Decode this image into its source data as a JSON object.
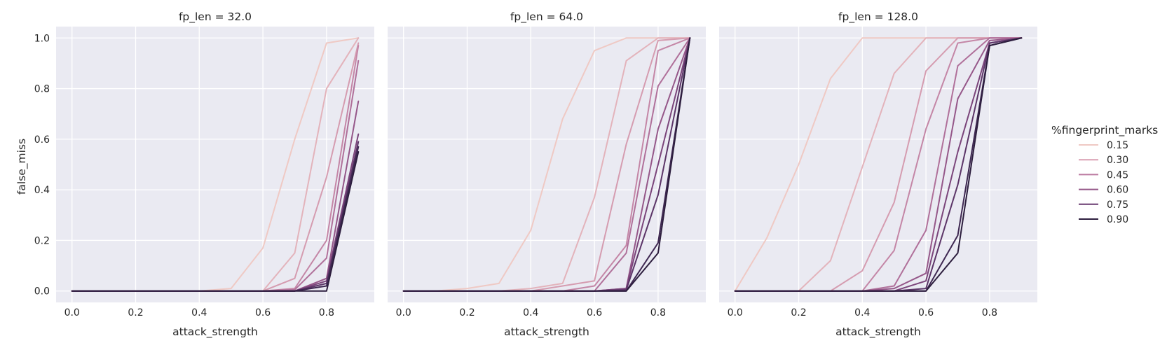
{
  "chart_data": {
    "type": "line",
    "xlabel": "attack_strength",
    "ylabel": "false_miss",
    "xlim": [
      -0.05,
      0.95
    ],
    "ylim": [
      -0.045,
      1.045
    ],
    "x_ticks": [
      "0.0",
      "0.2",
      "0.4",
      "0.6",
      "0.8"
    ],
    "y_ticks": [
      "0.0",
      "0.2",
      "0.4",
      "0.6",
      "0.8",
      "1.0"
    ],
    "grid": true,
    "legend": {
      "title": "%fingerprint_marks",
      "placement": "right",
      "entries": [
        {
          "label": "0.15",
          "color": "#efc9c4"
        },
        {
          "label": "0.30",
          "color": "#d99fb2"
        },
        {
          "label": "0.45",
          "color": "#bc7aa0"
        },
        {
          "label": "0.60",
          "color": "#955789"
        },
        {
          "label": "0.75",
          "color": "#693b70"
        },
        {
          "label": "0.90",
          "color": "#2d1e3e"
        }
      ]
    },
    "panels": [
      {
        "title": "fp_len = 32.0",
        "x": [
          0.0,
          0.1,
          0.2,
          0.3,
          0.4,
          0.5,
          0.6,
          0.7,
          0.8,
          0.9
        ],
        "series": [
          {
            "color": "#efc9c4",
            "values": [
              0,
              0,
              0,
              0,
              0,
              0.01,
              0.17,
              0.6,
              0.98,
              1.0
            ]
          },
          {
            "color": "#e3b3bb",
            "values": [
              0,
              0,
              0,
              0,
              0,
              0,
              0,
              0.15,
              0.8,
              1.0
            ]
          },
          {
            "color": "#d59cb0",
            "values": [
              0,
              0,
              0,
              0,
              0,
              0,
              0,
              0.05,
              0.45,
              0.98
            ]
          },
          {
            "color": "#c486a6",
            "values": [
              0,
              0,
              0,
              0,
              0,
              0,
              0,
              0.01,
              0.2,
              0.97
            ]
          },
          {
            "color": "#b0709a",
            "values": [
              0,
              0,
              0,
              0,
              0,
              0,
              0,
              0.005,
              0.13,
              0.91
            ]
          },
          {
            "color": "#955789",
            "values": [
              0,
              0,
              0,
              0,
              0,
              0,
              0,
              0,
              0.05,
              0.75
            ]
          },
          {
            "color": "#7b457b",
            "values": [
              0,
              0,
              0,
              0,
              0,
              0,
              0,
              0,
              0.04,
              0.62
            ]
          },
          {
            "color": "#5c3568",
            "values": [
              0,
              0,
              0,
              0,
              0,
              0,
              0,
              0,
              0.03,
              0.59
            ]
          },
          {
            "color": "#3f2852",
            "values": [
              0,
              0,
              0,
              0,
              0,
              0,
              0,
              0,
              0.02,
              0.57
            ]
          },
          {
            "color": "#2d1e3e",
            "values": [
              0,
              0,
              0,
              0,
              0,
              0,
              0,
              0,
              0.0,
              0.55
            ]
          }
        ]
      },
      {
        "title": "fp_len = 64.0",
        "x": [
          0.0,
          0.1,
          0.2,
          0.3,
          0.4,
          0.5,
          0.6,
          0.7,
          0.8,
          0.9
        ],
        "series": [
          {
            "color": "#efc9c4",
            "values": [
              0,
              0,
              0.01,
              0.03,
              0.24,
              0.68,
              0.95,
              1.0,
              1.0,
              1.0
            ]
          },
          {
            "color": "#e3b3bb",
            "values": [
              0,
              0,
              0,
              0,
              0.01,
              0.03,
              0.37,
              0.91,
              1.0,
              1.0
            ]
          },
          {
            "color": "#d59cb0",
            "values": [
              0,
              0,
              0,
              0,
              0,
              0.02,
              0.04,
              0.58,
              0.99,
              1.0
            ]
          },
          {
            "color": "#c486a6",
            "values": [
              0,
              0,
              0,
              0,
              0,
              0,
              0.02,
              0.18,
              0.95,
              1.0
            ]
          },
          {
            "color": "#b0709a",
            "values": [
              0,
              0,
              0,
              0,
              0,
              0,
              0,
              0.15,
              0.81,
              1.0
            ]
          },
          {
            "color": "#955789",
            "values": [
              0,
              0,
              0,
              0,
              0,
              0,
              0,
              0.01,
              0.64,
              1.0
            ]
          },
          {
            "color": "#7b457b",
            "values": [
              0,
              0,
              0,
              0,
              0,
              0,
              0,
              0.01,
              0.5,
              1.0
            ]
          },
          {
            "color": "#5c3568",
            "values": [
              0,
              0,
              0,
              0,
              0,
              0,
              0,
              0.005,
              0.38,
              1.0
            ]
          },
          {
            "color": "#3f2852",
            "values": [
              0,
              0,
              0,
              0,
              0,
              0,
              0,
              0,
              0.19,
              1.0
            ]
          },
          {
            "color": "#2d1e3e",
            "values": [
              0,
              0,
              0,
              0,
              0,
              0,
              0,
              0,
              0.15,
              1.0
            ]
          }
        ]
      },
      {
        "title": "fp_len = 128.0",
        "x": [
          0.0,
          0.1,
          0.2,
          0.3,
          0.4,
          0.5,
          0.6,
          0.7,
          0.8,
          0.9
        ],
        "series": [
          {
            "color": "#efc9c4",
            "values": [
              0,
              0.21,
              0.5,
              0.84,
              1.0,
              1.0,
              1.0,
              1.0,
              1.0,
              1.0
            ]
          },
          {
            "color": "#e3b3bb",
            "values": [
              0,
              0,
              0,
              0.12,
              0.49,
              0.86,
              1.0,
              1.0,
              1.0,
              1.0
            ]
          },
          {
            "color": "#d59cb0",
            "values": [
              0,
              0,
              0,
              0,
              0.08,
              0.35,
              0.87,
              1.0,
              1.0,
              1.0
            ]
          },
          {
            "color": "#c486a6",
            "values": [
              0,
              0,
              0,
              0,
              0,
              0.16,
              0.64,
              0.98,
              1.0,
              1.0
            ]
          },
          {
            "color": "#b0709a",
            "values": [
              0,
              0,
              0,
              0,
              0,
              0.02,
              0.24,
              0.89,
              1.0,
              1.0
            ]
          },
          {
            "color": "#955789",
            "values": [
              0,
              0,
              0,
              0,
              0,
              0.01,
              0.07,
              0.76,
              0.99,
              1.0
            ]
          },
          {
            "color": "#7b457b",
            "values": [
              0,
              0,
              0,
              0,
              0,
              0,
              0.04,
              0.55,
              0.98,
              1.0
            ]
          },
          {
            "color": "#5c3568",
            "values": [
              0,
              0,
              0,
              0,
              0,
              0,
              0.01,
              0.42,
              0.98,
              1.0
            ]
          },
          {
            "color": "#3f2852",
            "values": [
              0,
              0,
              0,
              0,
              0,
              0,
              0,
              0.22,
              0.97,
              1.0
            ]
          },
          {
            "color": "#2d1e3e",
            "values": [
              0,
              0,
              0,
              0,
              0,
              0,
              0,
              0.15,
              0.97,
              1.0
            ]
          }
        ]
      }
    ]
  }
}
